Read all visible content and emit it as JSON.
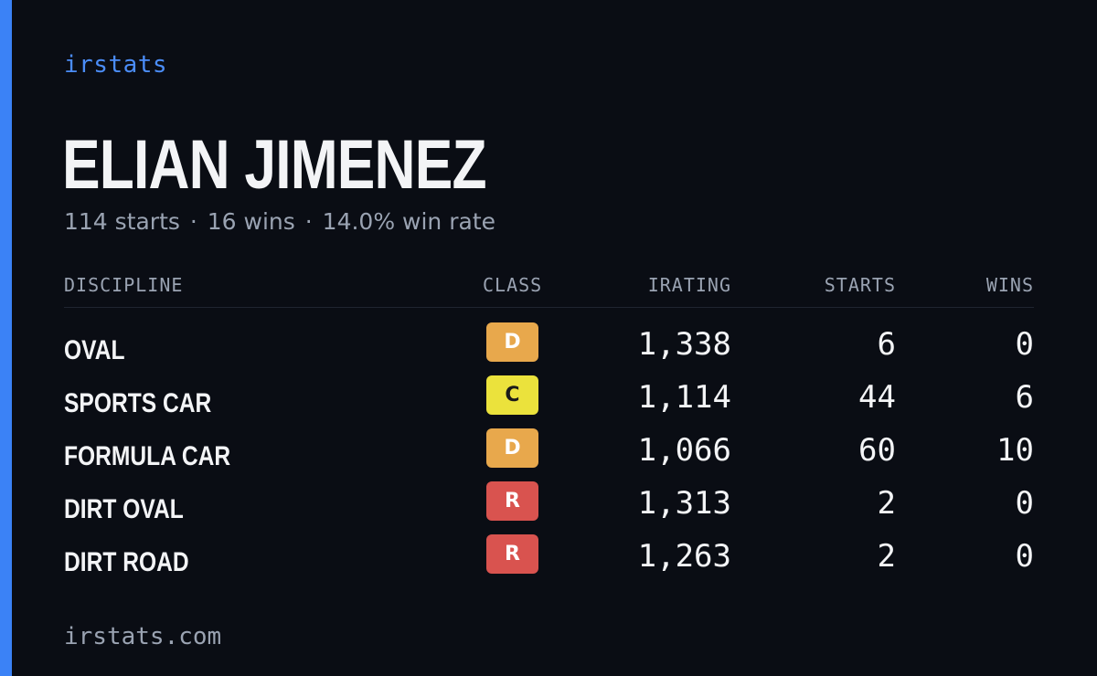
{
  "brand": "irstats",
  "driver": {
    "name": "ELIAN JIMENEZ",
    "starts_text": "114 starts",
    "wins_text": "16 wins",
    "win_rate_text": "14.0% win rate",
    "separator": "·"
  },
  "table": {
    "headers": {
      "discipline": "DISCIPLINE",
      "class": "CLASS",
      "irating": "IRATING",
      "starts": "STARTS",
      "wins": "WINS"
    },
    "rows": [
      {
        "discipline": "OVAL",
        "class": "D",
        "irating": "1,338",
        "starts": "6",
        "wins": "0"
      },
      {
        "discipline": "SPORTS CAR",
        "class": "C",
        "irating": "1,114",
        "starts": "44",
        "wins": "6"
      },
      {
        "discipline": "FORMULA CAR",
        "class": "D",
        "irating": "1,066",
        "starts": "60",
        "wins": "10"
      },
      {
        "discipline": "DIRT OVAL",
        "class": "R",
        "irating": "1,313",
        "starts": "2",
        "wins": "0"
      },
      {
        "discipline": "DIRT ROAD",
        "class": "R",
        "irating": "1,263",
        "starts": "2",
        "wins": "0"
      }
    ]
  },
  "class_colors": {
    "D": {
      "bg": "#e8a84c",
      "fg": "#ffffff"
    },
    "C": {
      "bg": "#ebe23c",
      "fg": "#1a1a1a"
    },
    "R": {
      "bg": "#d9534f",
      "fg": "#ffffff"
    }
  },
  "colors": {
    "accent": "#3b82f6",
    "background": "#0a0d14"
  },
  "footer": "irstats.com"
}
